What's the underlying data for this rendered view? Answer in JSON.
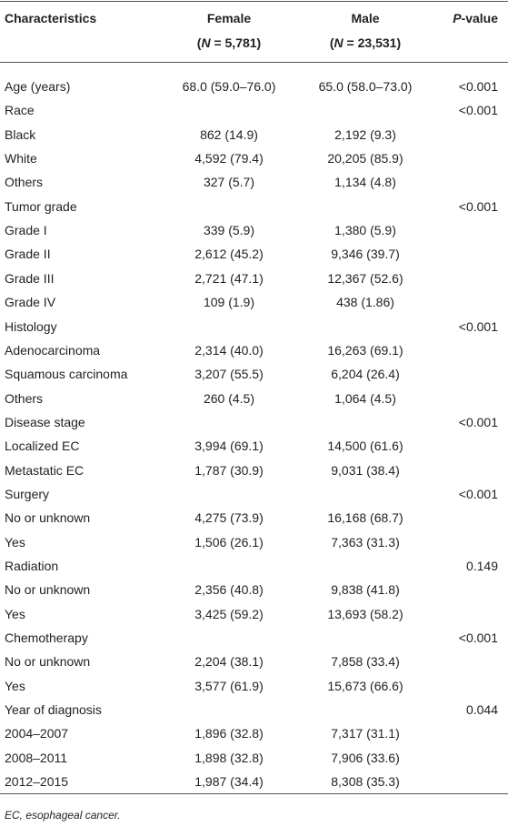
{
  "table": {
    "header": [
      {
        "title": "Characteristics"
      },
      {
        "title": "Female",
        "sub": {
          "open": "(",
          "var": "N",
          "rest": " = 5,781)"
        }
      },
      {
        "title": "Male",
        "sub": {
          "open": "(",
          "var": "N",
          "rest": " = 23,531)"
        }
      },
      {
        "var": "P",
        "rest": "-value"
      }
    ],
    "rows": [
      [
        "Age (years)",
        "68.0 (59.0–76.0)",
        "65.0 (58.0–73.0)",
        "<0.001"
      ],
      [
        "Race",
        null,
        null,
        "<0.001"
      ],
      [
        "Black",
        "862 (14.9)",
        "2,192 (9.3)",
        null
      ],
      [
        "White",
        "4,592 (79.4)",
        "20,205 (85.9)",
        null
      ],
      [
        "Others",
        "327 (5.7)",
        "1,134 (4.8)",
        null
      ],
      [
        "Tumor grade",
        null,
        null,
        "<0.001"
      ],
      [
        "Grade I",
        "339 (5.9)",
        "1,380 (5.9)",
        null
      ],
      [
        "Grade II",
        "2,612 (45.2)",
        "9,346 (39.7)",
        null
      ],
      [
        "Grade III",
        "2,721 (47.1)",
        "12,367 (52.6)",
        null
      ],
      [
        "Grade IV",
        "109 (1.9)",
        "438 (1.86)",
        null
      ],
      [
        "Histology",
        null,
        null,
        "<0.001"
      ],
      [
        "Adenocarcinoma",
        "2,314 (40.0)",
        "16,263 (69.1)",
        null
      ],
      [
        "Squamous carcinoma",
        "3,207 (55.5)",
        "6,204 (26.4)",
        null
      ],
      [
        "Others",
        "260 (4.5)",
        "1,064 (4.5)",
        null
      ],
      [
        "Disease stage",
        null,
        null,
        "<0.001"
      ],
      [
        "Localized EC",
        "3,994 (69.1)",
        "14,500 (61.6)",
        null
      ],
      [
        "Metastatic EC",
        "1,787 (30.9)",
        "9,031 (38.4)",
        null
      ],
      [
        "Surgery",
        null,
        null,
        "<0.001"
      ],
      [
        "No or unknown",
        "4,275 (73.9)",
        "16,168 (68.7)",
        null
      ],
      [
        "Yes",
        "1,506 (26.1)",
        "7,363 (31.3)",
        null
      ],
      [
        "Radiation",
        null,
        null,
        "0.149"
      ],
      [
        "No or unknown",
        "2,356 (40.8)",
        "9,838 (41.8)",
        null
      ],
      [
        "Yes",
        "3,425 (59.2)",
        "13,693 (58.2)",
        null
      ],
      [
        "Chemotherapy",
        null,
        null,
        "<0.001"
      ],
      [
        "No or unknown",
        "2,204 (38.1)",
        "7,858 (33.4)",
        null
      ],
      [
        "Yes",
        "3,577 (61.9)",
        "15,673 (66.6)",
        null
      ],
      [
        "Year of diagnosis",
        null,
        null,
        "0.044"
      ],
      [
        "2004–2007",
        "1,896 (32.8)",
        "7,317 (31.1)",
        null
      ],
      [
        "2008–2011",
        "1,898 (32.8)",
        "7,906 (33.6)",
        null
      ],
      [
        "2012–2015",
        "1,987 (34.4)",
        "8,308 (35.3)",
        null
      ]
    ],
    "footnote": "EC, esophageal cancer."
  }
}
